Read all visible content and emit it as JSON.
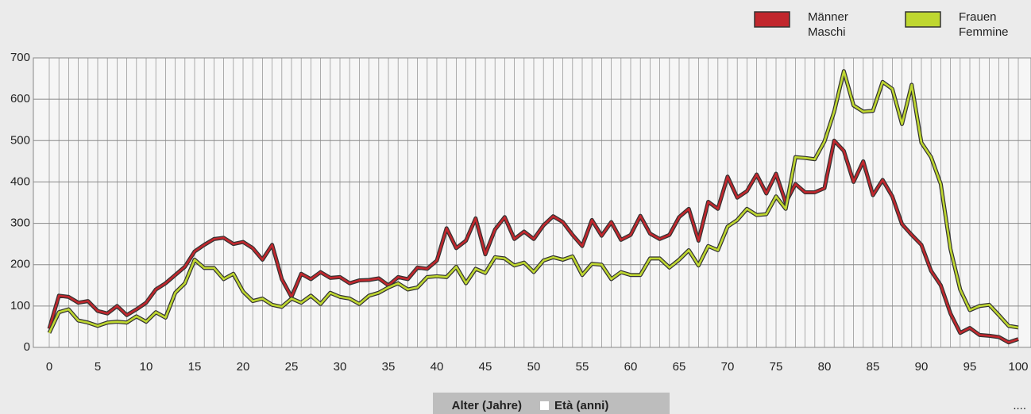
{
  "chart_data": {
    "type": "line",
    "x": [
      0,
      1,
      2,
      3,
      4,
      5,
      6,
      7,
      8,
      9,
      10,
      11,
      12,
      13,
      14,
      15,
      16,
      17,
      18,
      19,
      20,
      21,
      22,
      23,
      24,
      25,
      26,
      27,
      28,
      29,
      30,
      31,
      32,
      33,
      34,
      35,
      36,
      37,
      38,
      39,
      40,
      41,
      42,
      43,
      44,
      45,
      46,
      47,
      48,
      49,
      50,
      51,
      52,
      53,
      54,
      55,
      56,
      57,
      58,
      59,
      60,
      61,
      62,
      63,
      64,
      65,
      66,
      67,
      68,
      69,
      70,
      71,
      72,
      73,
      74,
      75,
      76,
      77,
      78,
      79,
      80,
      81,
      82,
      83,
      84,
      85,
      86,
      87,
      88,
      89,
      90,
      91,
      92,
      93,
      94,
      95,
      96,
      97,
      98,
      99,
      100
    ],
    "series": [
      {
        "name": "Männer",
        "name_alt": "Maschi",
        "color": "#c1272d",
        "values": [
          45,
          125,
          122,
          108,
          112,
          88,
          82,
          100,
          78,
          92,
          108,
          140,
          155,
          175,
          195,
          232,
          248,
          262,
          265,
          250,
          255,
          240,
          212,
          248,
          165,
          122,
          178,
          165,
          182,
          168,
          170,
          155,
          162,
          163,
          167,
          150,
          170,
          165,
          193,
          190,
          210,
          288,
          240,
          258,
          312,
          225,
          285,
          315,
          262,
          280,
          262,
          295,
          317,
          303,
          272,
          245,
          308,
          270,
          303,
          260,
          272,
          318,
          275,
          262,
          272,
          315,
          335,
          258,
          352,
          335,
          413,
          362,
          378,
          418,
          372,
          420,
          350,
          395,
          375,
          375,
          385,
          500,
          475,
          400,
          450,
          368,
          405,
          365,
          298,
          272,
          248,
          185,
          150,
          82,
          35,
          47,
          30,
          28,
          25,
          12,
          20
        ]
      },
      {
        "name": "Frauen",
        "name_alt": "Femmine",
        "color": "#bfd730",
        "values": [
          35,
          85,
          92,
          65,
          60,
          52,
          60,
          62,
          60,
          75,
          62,
          85,
          72,
          132,
          155,
          212,
          192,
          192,
          165,
          178,
          135,
          112,
          118,
          103,
          98,
          118,
          108,
          125,
          105,
          132,
          122,
          118,
          105,
          125,
          132,
          145,
          155,
          140,
          145,
          170,
          172,
          170,
          195,
          155,
          190,
          180,
          218,
          215,
          198,
          205,
          182,
          210,
          218,
          212,
          220,
          175,
          202,
          200,
          165,
          182,
          175,
          175,
          215,
          215,
          193,
          212,
          235,
          198,
          245,
          235,
          292,
          308,
          335,
          320,
          322,
          365,
          335,
          460,
          458,
          455,
          498,
          570,
          668,
          585,
          570,
          572,
          642,
          625,
          540,
          635,
          495,
          460,
          395,
          238,
          140,
          90,
          100,
          103,
          78,
          52,
          48
        ]
      }
    ],
    "xlim": [
      0,
      100
    ],
    "xticks": [
      0,
      5,
      10,
      15,
      20,
      25,
      30,
      35,
      40,
      45,
      50,
      55,
      60,
      65,
      70,
      75,
      80,
      85,
      90,
      95,
      100
    ],
    "ylim": [
      0,
      700
    ],
    "yticks": [
      0,
      100,
      200,
      300,
      400,
      500,
      600,
      700
    ],
    "x_label": "Alter (Jahre)",
    "x_label_alt": "Età (anni)",
    "ellipsis": "....",
    "grid": true,
    "legend": "top-right"
  }
}
